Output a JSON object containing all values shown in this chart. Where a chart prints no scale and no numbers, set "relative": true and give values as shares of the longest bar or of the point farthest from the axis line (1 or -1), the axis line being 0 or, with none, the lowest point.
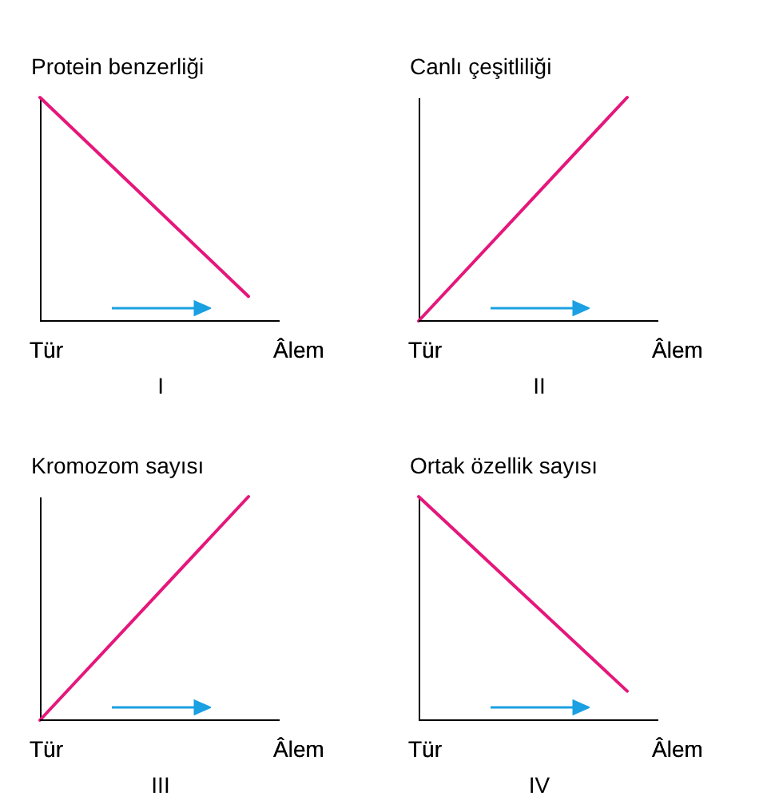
{
  "chart_data": [
    {
      "type": "line",
      "ylabel": "Protein benzerliği",
      "xlabel": "I",
      "relative": true,
      "categories": [
        null,
        null
      ],
      "values": [
        1,
        0.11
      ],
      "color": "#e5177b",
      "annotations": [
        "Tür",
        "Âlem"
      ],
      "tick_labels": false,
      "grid": false,
      "marker": "none"
    },
    {
      "type": "line",
      "ylabel": "Canlı çeşitliliği",
      "xlabel": "II",
      "relative": true,
      "categories": [
        null,
        null
      ],
      "values": [
        0,
        1
      ],
      "color": "#e5177b",
      "annotations": [
        "Tür",
        "Âlem"
      ],
      "tick_labels": false,
      "grid": false,
      "marker": "none"
    },
    {
      "type": "line",
      "ylabel": "Kromozom sayısı",
      "xlabel": "III",
      "relative": true,
      "categories": [
        null,
        null
      ],
      "values": [
        0,
        1
      ],
      "color": "#e5177b",
      "annotations": [
        "Tür",
        "Âlem"
      ],
      "tick_labels": false,
      "grid": false,
      "marker": "none"
    },
    {
      "type": "line",
      "ylabel": "Ortak özellik sayısı",
      "xlabel": "IV",
      "relative": true,
      "categories": [
        null,
        null
      ],
      "values": [
        1,
        0.13
      ],
      "color": "#e5177b",
      "annotations": [
        "Tür",
        "Âlem"
      ],
      "tick_labels": false,
      "grid": false,
      "marker": "none"
    }
  ]
}
